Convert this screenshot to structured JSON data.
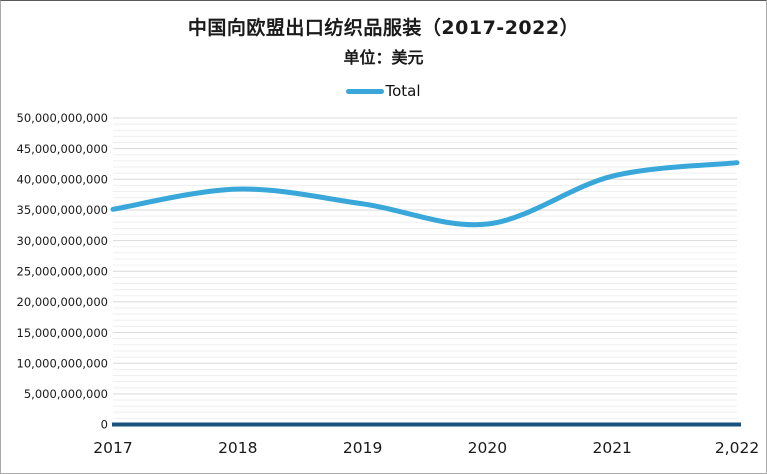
{
  "header": {
    "title": "中国向欧盟出口纺织品服装（2017-2022）",
    "subtitle": "单位：美元"
  },
  "legend": {
    "items": [
      {
        "label": "Total",
        "color": "#39a7da"
      }
    ]
  },
  "chart_data": {
    "type": "line",
    "title": "中国向欧盟出口纺织品服装（2017-2022）",
    "subtitle": "单位：美元",
    "categories": [
      "2017",
      "2018",
      "2019",
      "2020",
      "2021",
      "2,022"
    ],
    "series": [
      {
        "name": "Total",
        "color": "#39a7da",
        "values": [
          35100000000,
          38400000000,
          36000000000,
          32700000000,
          40500000000,
          42700000000
        ]
      }
    ],
    "ylim": [
      0,
      50000000000
    ],
    "y_major_step": 5000000000,
    "y_minor_step": 1000000000,
    "xlabel": "",
    "ylabel": "",
    "grid": "horizontal",
    "legend_position": "top-center",
    "line_smooth": true,
    "colors": {
      "axis_line": "#17537e",
      "major_grid": "#d9d9d9",
      "minor_grid": "#efefef",
      "tick_text": "#1a1a1a"
    }
  }
}
